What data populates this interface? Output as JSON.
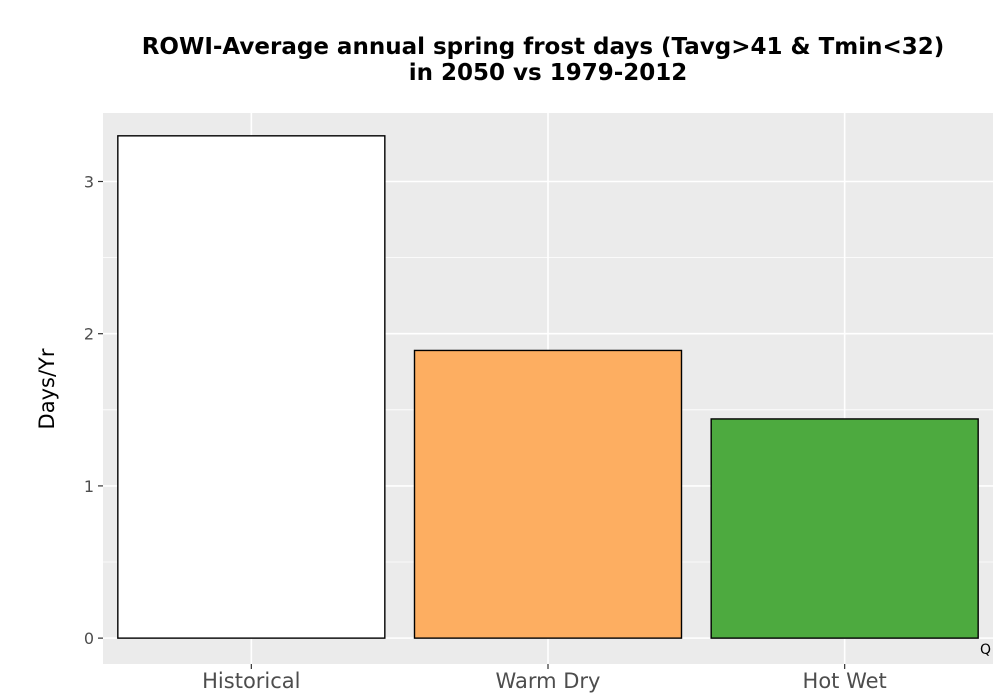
{
  "chart_data": {
    "type": "bar",
    "title_line1": "ROWI-Average annual spring frost days (Tavg>41 & Tmin<32)",
    "title_line2": "in 2050 vs 1979-2012",
    "xlabel": "",
    "ylabel": "Days/Yr",
    "categories": [
      "Historical",
      "Warm Dry",
      "Hot Wet"
    ],
    "values": [
      3.3,
      1.89,
      1.44
    ],
    "colors": [
      "#ffffff",
      "#fdae61",
      "#4daa3f"
    ],
    "bar_outline_color": "#000000",
    "ylim": [
      -0.17,
      3.45
    ],
    "yticks": [
      0,
      1,
      2,
      3
    ],
    "ytick_labels": [
      "0",
      "1",
      "2",
      "3"
    ],
    "grid": true,
    "panel_background": "#ebebeb",
    "grid_color": "#ffffff",
    "corner_label": "Q"
  }
}
